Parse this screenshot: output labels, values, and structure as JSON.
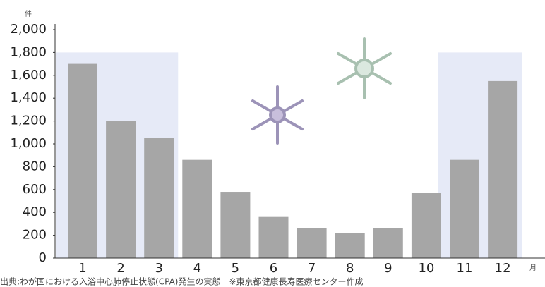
{
  "chart_data": {
    "type": "bar",
    "y_unit": "件",
    "x_unit": "月",
    "source": "出典:わが国における入浴中心肺停止状態(CPA)発生の実態　※東京都健康長寿医療センター作成",
    "categories": [
      "1",
      "2",
      "3",
      "4",
      "5",
      "6",
      "7",
      "8",
      "9",
      "10",
      "11",
      "12"
    ],
    "values": [
      1700,
      1200,
      1050,
      860,
      580,
      360,
      260,
      220,
      260,
      570,
      860,
      1550
    ],
    "color": "#a6a6a6",
    "ylim": [
      0,
      2000
    ],
    "yticks": [
      0,
      200,
      400,
      600,
      800,
      {
        "value": 1000,
        "label": "1,000"
      },
      {
        "value": 1200,
        "label": "1,200"
      },
      {
        "value": 1400,
        "label": "1,400"
      },
      {
        "value": 1600,
        "label": "1,600"
      },
      {
        "value": 1800,
        "label": "1,800"
      },
      {
        "value": 2000,
        "label": "2,000"
      }
    ],
    "shaded_months": [
      [
        1,
        3
      ],
      [
        11,
        12
      ]
    ],
    "shade_top": 1800,
    "shade_color": "#e6eaf7"
  }
}
